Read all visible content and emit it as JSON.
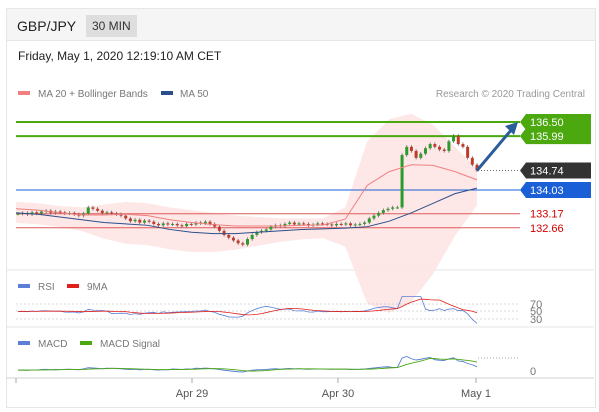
{
  "header": {
    "pair": "GBP/JPY",
    "timeframe": "30 MIN"
  },
  "datetime": "Friday, May 1, 2020 12:19:10 AM CET",
  "legend": {
    "ma20": "MA 20 + Bollinger Bands",
    "ma50": "MA 50",
    "credit": "Research © 2020 Trading Central"
  },
  "rsi_legend": {
    "rsi": "RSI",
    "ma": "9MA"
  },
  "macd_legend": {
    "macd": "MACD",
    "signal": "MACD Signal"
  },
  "colors": {
    "resistance": "#4ca80f",
    "support_blue": "#1a5fd6",
    "support_red": "#e05a5a",
    "current": "#333333",
    "bollinger_fill": "#fde4e4",
    "ma20": "#f08080",
    "ma50": "#2b4f8a",
    "candle_up": "#2c9b2c",
    "candle_down": "#c0392b",
    "arrow": "#2b5d9b",
    "macd": "#5b7fd6",
    "signal": "#4ca80f"
  },
  "chart_data": {
    "type": "candlestick",
    "x_ticks": [
      "Apr 29",
      "Apr 30",
      "May 1"
    ],
    "y_range": [
      131.2,
      137.3
    ],
    "levels": [
      {
        "value": 136.5,
        "label": "136.50",
        "kind": "resistance"
      },
      {
        "value": 135.99,
        "label": "135.99",
        "kind": "resistance"
      },
      {
        "value": 134.74,
        "label": "134.74",
        "kind": "current"
      },
      {
        "value": 134.03,
        "label": "134.03",
        "kind": "support"
      },
      {
        "value": 133.17,
        "label": "133.17",
        "kind": "support"
      },
      {
        "value": 132.66,
        "label": "132.66",
        "kind": "support"
      }
    ],
    "projection": {
      "from": 134.74,
      "to": 136.5
    },
    "closes": [
      133.17,
      133.2,
      133.15,
      133.22,
      133.18,
      133.25,
      133.28,
      133.2,
      133.25,
      133.22,
      133.18,
      133.2,
      133.15,
      133.1,
      133.18,
      133.4,
      133.35,
      133.28,
      133.2,
      133.22,
      133.18,
      133.15,
      133.1,
      133.0,
      132.9,
      132.95,
      132.85,
      132.92,
      132.88,
      132.8,
      132.75,
      132.82,
      132.78,
      132.8,
      132.75,
      132.72,
      132.8,
      132.78,
      132.85,
      132.82,
      132.88,
      132.8,
      132.7,
      132.55,
      132.4,
      132.3,
      132.2,
      132.1,
      132.05,
      132.25,
      132.4,
      132.5,
      132.55,
      132.6,
      132.7,
      132.75,
      132.72,
      132.8,
      132.85,
      132.78,
      132.82,
      132.8,
      132.75,
      132.78,
      132.82,
      132.8,
      132.78,
      132.75,
      132.8,
      132.78,
      132.82,
      132.75,
      132.78,
      132.8,
      132.85,
      133.0,
      133.1,
      133.2,
      133.3,
      133.35,
      133.4,
      133.4,
      135.3,
      135.6,
      135.45,
      135.2,
      135.35,
      135.55,
      135.7,
      135.6,
      135.5,
      135.45,
      135.8,
      136.0,
      135.7,
      135.6,
      135.2,
      134.95,
      134.74
    ],
    "ma20_upper": [
      133.6,
      133.55,
      133.45,
      133.4,
      133.5,
      133.6,
      133.55,
      133.4,
      133.3,
      133.2,
      133.1,
      133.05,
      133.0,
      133.0,
      133.0,
      133.4,
      135.8,
      136.6,
      136.8,
      136.4,
      135.6,
      134.8
    ],
    "ma50": [
      133.2,
      133.15,
      133.05,
      132.95,
      132.85,
      132.8,
      132.75,
      132.6,
      132.5,
      132.45,
      132.45,
      132.5,
      132.55,
      132.6,
      132.62,
      132.65,
      132.7,
      132.9,
      133.2,
      133.55,
      133.9,
      134.1
    ],
    "rsi_levels": [
      "70",
      "50",
      "30"
    ],
    "macd_levels": [
      "0"
    ]
  }
}
